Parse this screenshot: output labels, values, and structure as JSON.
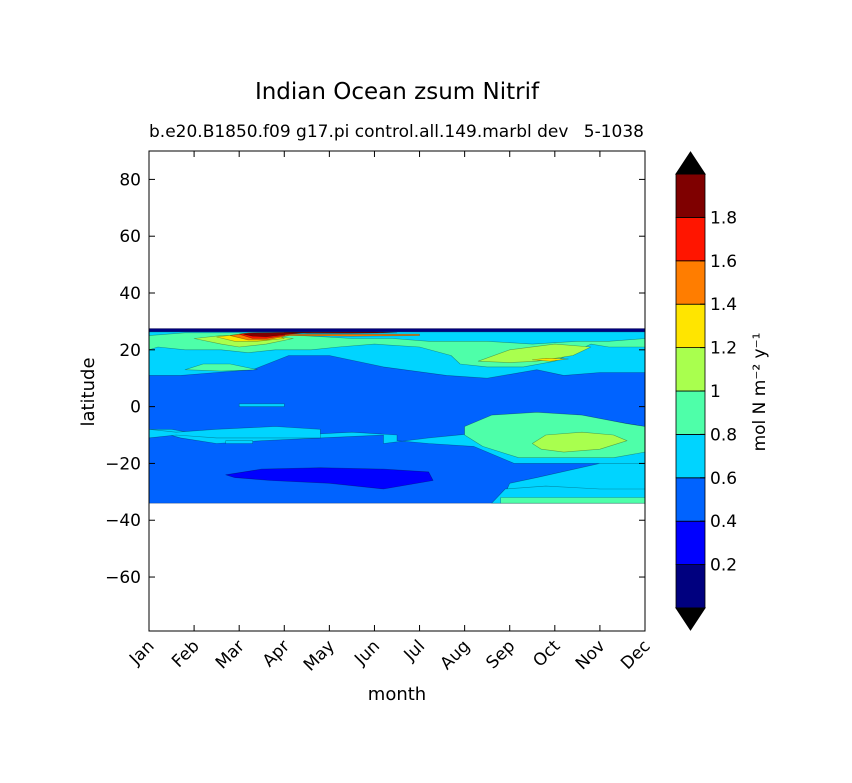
{
  "chart_data": {
    "type": "filled-contour",
    "title": "Indian Ocean zsum Nitrif",
    "subtitle_left": "b.e20.B1850.f09 g17.pi control.all.149.marbl dev",
    "subtitle_right": "5-1038",
    "xlabel": "month",
    "ylabel": "latitude",
    "x_categories": [
      "Jan",
      "Feb",
      "Mar",
      "Apr",
      "May",
      "Jun",
      "Jul",
      "Aug",
      "Sep",
      "Oct",
      "Nov",
      "Dec"
    ],
    "xlim": [
      0,
      11
    ],
    "ylim": [
      -79,
      90
    ],
    "yticks": [
      80,
      60,
      40,
      20,
      0,
      -20,
      -40,
      -60
    ],
    "ytick_labels": [
      "80",
      "60",
      "40",
      "20",
      "0",
      "−20",
      "−40",
      "−60"
    ],
    "data_extent_lat": [
      -34,
      27
    ],
    "grid": false,
    "colorbar": {
      "label": "mol N m⁻² y⁻¹",
      "orientation": "vertical",
      "extend": "both",
      "levels": [
        0,
        0.2,
        0.4,
        0.6,
        0.8,
        1.0,
        1.2,
        1.4,
        1.6,
        1.8,
        2.0
      ],
      "tick_values": [
        0.2,
        0.4,
        0.6,
        0.8,
        1.0,
        1.2,
        1.4,
        1.6,
        1.8
      ],
      "tick_labels": [
        "0.2",
        "0.4",
        "0.6",
        "0.8",
        "1",
        "1.2",
        "1.4",
        "1.6",
        "1.8"
      ],
      "colors": [
        "#00007f",
        "#0000ff",
        "#0063ff",
        "#00d4ff",
        "#4effa9",
        "#a9ff4e",
        "#ffe500",
        "#ff7d00",
        "#ff1500",
        "#7f0000"
      ],
      "under_color": "#000000",
      "over_color": "#000000"
    },
    "regions": [
      {
        "level_index": 2,
        "description": "background 0.4-0.6",
        "polygon": [
          [
            0,
            -34
          ],
          [
            11,
            -34
          ],
          [
            11,
            27
          ],
          [
            0,
            27
          ]
        ]
      },
      {
        "level_index": 3,
        "polygon": [
          [
            0,
            27
          ],
          [
            11,
            27
          ],
          [
            11,
            12
          ],
          [
            10,
            12
          ],
          [
            9.2,
            11
          ],
          [
            8.6,
            13
          ],
          [
            7.5,
            10
          ],
          [
            6.6,
            11
          ],
          [
            5.2,
            14
          ],
          [
            4,
            18
          ],
          [
            3.1,
            18
          ],
          [
            2.3,
            13
          ],
          [
            1.5,
            12
          ],
          [
            0.7,
            11
          ],
          [
            0,
            11
          ]
        ]
      },
      {
        "level_index": 3,
        "polygon": [
          [
            0,
            -8
          ],
          [
            0.7,
            -11
          ],
          [
            1.5,
            -13
          ],
          [
            2.5,
            -12
          ],
          [
            3.8,
            -11
          ],
          [
            5.2,
            -10
          ],
          [
            5.2,
            -13
          ],
          [
            6.2,
            -11
          ],
          [
            7.5,
            -9
          ],
          [
            8.6,
            -5
          ],
          [
            9.5,
            -3
          ],
          [
            10.2,
            -5
          ],
          [
            11,
            -7
          ],
          [
            11,
            -20
          ],
          [
            10,
            -20
          ],
          [
            8.6,
            -25
          ],
          [
            8,
            -27
          ],
          [
            7.8,
            -34
          ],
          [
            11,
            -34
          ],
          [
            11,
            -20
          ],
          [
            8.8,
            -20
          ],
          [
            8.1,
            -20
          ],
          [
            7.2,
            -14
          ],
          [
            6.2,
            -13
          ],
          [
            5.5,
            -12
          ],
          [
            5.5,
            -10
          ],
          [
            4.5,
            -9
          ],
          [
            3.3,
            -10
          ],
          [
            2.2,
            -9
          ],
          [
            1.2,
            -10
          ],
          [
            0.5,
            -8
          ]
        ]
      },
      {
        "level_index": 3,
        "polygon": [
          [
            2,
            0
          ],
          [
            3,
            0
          ],
          [
            3,
            1
          ],
          [
            2,
            1
          ]
        ]
      },
      {
        "level_index": 3,
        "polygon": [
          [
            0,
            -8
          ],
          [
            0.6,
            -9
          ],
          [
            1.5,
            -8
          ],
          [
            2.8,
            -7
          ],
          [
            3.8,
            -8
          ],
          [
            3.8,
            -11
          ],
          [
            2.8,
            -11
          ],
          [
            1.5,
            -11
          ],
          [
            0.6,
            -10
          ],
          [
            0,
            -11
          ]
        ]
      },
      {
        "level_index": 3,
        "polygon": [
          [
            7.6,
            -34
          ],
          [
            7.9,
            -29
          ],
          [
            8.8,
            -28
          ],
          [
            10,
            -29
          ],
          [
            11,
            -29
          ],
          [
            11,
            -34
          ]
        ]
      },
      {
        "level_index": 3,
        "polygon": [
          [
            1.7,
            -12
          ],
          [
            2.3,
            -12
          ],
          [
            2.3,
            -13
          ],
          [
            1.7,
            -13
          ]
        ]
      },
      {
        "level_index": 4,
        "polygon": [
          [
            0,
            25
          ],
          [
            0.8,
            26
          ],
          [
            2,
            26
          ],
          [
            3.4,
            25
          ],
          [
            4.5,
            24
          ],
          [
            5.4,
            24
          ],
          [
            6.2,
            23
          ],
          [
            7.5,
            23
          ],
          [
            8.5,
            22
          ],
          [
            9.5,
            23
          ],
          [
            10.2,
            23
          ],
          [
            11,
            24
          ],
          [
            11,
            21
          ],
          [
            10.2,
            21
          ],
          [
            9.8,
            22
          ],
          [
            9.4,
            19
          ],
          [
            9,
            16
          ],
          [
            8.3,
            14
          ],
          [
            7.5,
            14
          ],
          [
            6.9,
            15
          ],
          [
            6.7,
            18
          ],
          [
            6,
            21
          ],
          [
            5,
            22
          ],
          [
            4.2,
            21
          ],
          [
            3.6,
            20
          ],
          [
            2.8,
            20
          ],
          [
            2.2,
            19
          ],
          [
            1.6,
            20
          ],
          [
            0.8,
            20
          ],
          [
            0.2,
            21
          ],
          [
            0,
            20
          ]
        ]
      },
      {
        "level_index": 4,
        "polygon": [
          [
            0.8,
            13
          ],
          [
            1.2,
            15
          ],
          [
            1.8,
            15
          ],
          [
            2.4,
            13
          ],
          [
            1.6,
            12.5
          ]
        ]
      },
      {
        "level_index": 4,
        "polygon": [
          [
            7,
            -7
          ],
          [
            7.6,
            -3
          ],
          [
            8.6,
            -2
          ],
          [
            9.6,
            -3
          ],
          [
            10.6,
            -6
          ],
          [
            11,
            -7
          ],
          [
            11,
            -16
          ],
          [
            10.3,
            -18
          ],
          [
            9.2,
            -18
          ],
          [
            8.2,
            -18
          ],
          [
            7.4,
            -14
          ],
          [
            7,
            -10
          ]
        ]
      },
      {
        "level_index": 4,
        "polygon": [
          [
            7.8,
            -32
          ],
          [
            8.8,
            -32
          ],
          [
            10,
            -32
          ],
          [
            11,
            -32
          ],
          [
            11,
            -34
          ],
          [
            7.8,
            -34
          ]
        ]
      },
      {
        "level_index": 5,
        "polygon": [
          [
            7.3,
            16
          ],
          [
            8,
            20
          ],
          [
            9,
            22
          ],
          [
            9.8,
            21
          ],
          [
            9.4,
            18
          ],
          [
            8.6,
            16
          ],
          [
            8,
            15.5
          ]
        ]
      },
      {
        "level_index": 5,
        "polygon": [
          [
            1,
            24
          ],
          [
            1.6,
            25
          ],
          [
            2.6,
            25
          ],
          [
            3.2,
            24
          ],
          [
            2.6,
            22
          ],
          [
            2,
            21
          ],
          [
            1.6,
            22
          ]
        ]
      },
      {
        "level_index": 5,
        "polygon": [
          [
            8.5,
            -13
          ],
          [
            8.8,
            -10
          ],
          [
            9.6,
            -9
          ],
          [
            10.3,
            -10
          ],
          [
            10.6,
            -12
          ],
          [
            10,
            -15
          ],
          [
            9.2,
            -16
          ],
          [
            8.7,
            -15
          ]
        ]
      },
      {
        "level_index": 6,
        "polygon": [
          [
            1.5,
            24.5
          ],
          [
            2,
            25.5
          ],
          [
            2.8,
            25.5
          ],
          [
            3,
            24
          ],
          [
            2.4,
            23
          ],
          [
            1.9,
            23
          ]
        ]
      },
      {
        "level_index": 6,
        "polygon": [
          [
            8.5,
            16.5
          ],
          [
            8.8,
            17
          ],
          [
            9.3,
            16.8
          ],
          [
            8.9,
            16
          ]
        ]
      },
      {
        "level_index": 7,
        "polygon": [
          [
            1.8,
            25
          ],
          [
            2.2,
            26
          ],
          [
            2.9,
            26
          ],
          [
            3.1,
            25
          ],
          [
            2.6,
            23.5
          ],
          [
            2.2,
            23.5
          ]
        ]
      },
      {
        "level_index": 7,
        "polygon": [
          [
            3,
            25.5
          ],
          [
            4.5,
            25.5
          ],
          [
            6,
            25.5
          ],
          [
            6,
            25
          ],
          [
            4.5,
            24.8
          ],
          [
            3,
            25
          ]
        ]
      },
      {
        "level_index": 8,
        "polygon": [
          [
            2,
            25.5
          ],
          [
            2.3,
            26
          ],
          [
            3,
            26
          ],
          [
            3,
            25
          ],
          [
            2.6,
            24
          ],
          [
            2.3,
            24
          ]
        ]
      },
      {
        "level_index": 9,
        "polygon": [
          [
            2.1,
            25.5
          ],
          [
            2.4,
            26
          ],
          [
            3,
            26.2
          ],
          [
            3.6,
            26.2
          ],
          [
            3,
            25.3
          ],
          [
            2.6,
            24.6
          ],
          [
            2.3,
            24.8
          ]
        ]
      },
      {
        "level_index": 9,
        "polygon": [
          [
            3,
            26.2
          ],
          [
            5,
            26.3
          ],
          [
            5.5,
            26
          ],
          [
            4.5,
            25.8
          ],
          [
            3.5,
            25.8
          ]
        ]
      },
      {
        "level_index": 1,
        "polygon": [
          [
            1.7,
            -24
          ],
          [
            2.5,
            -22
          ],
          [
            3.8,
            -21.5
          ],
          [
            5.2,
            -22
          ],
          [
            6.2,
            -23
          ],
          [
            6.3,
            -26
          ],
          [
            5.2,
            -29
          ],
          [
            4,
            -27
          ],
          [
            2.7,
            -26
          ],
          [
            1.9,
            -25
          ]
        ]
      },
      {
        "level_index": 0,
        "polygon": [
          [
            0,
            26.3
          ],
          [
            11,
            26.3
          ],
          [
            11,
            27.5
          ],
          [
            0,
            27.5
          ]
        ]
      }
    ]
  }
}
